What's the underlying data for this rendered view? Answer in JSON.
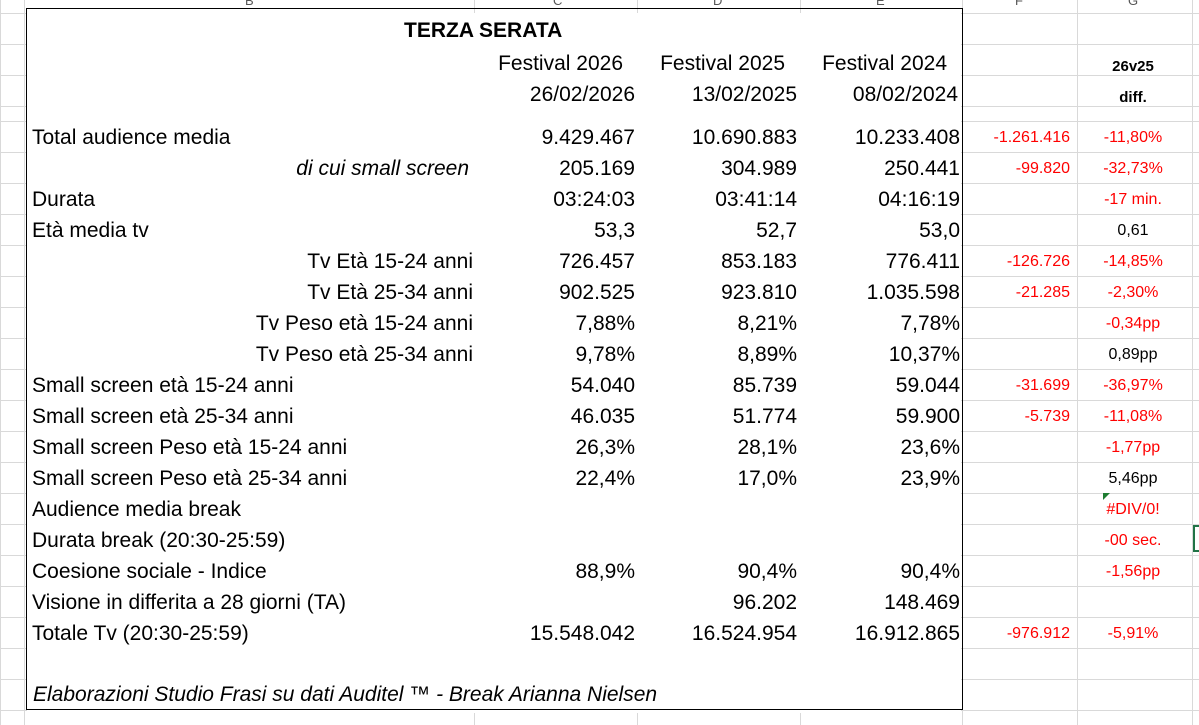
{
  "sheet": {
    "column_letters": [
      "B",
      "C",
      "D",
      "E",
      "F",
      "G"
    ],
    "title": "TERZA SERATA",
    "headers": {
      "festivals": [
        "Festival 2026",
        "Festival 2025",
        "Festival 2024"
      ],
      "dates": [
        "26/02/2026",
        "13/02/2025",
        "08/02/2024"
      ],
      "comparison": "26v25",
      "diff": "diff."
    },
    "rows": [
      {
        "label": "Total audience media",
        "v2026": "9.429.467",
        "v2025": "10.690.883",
        "v2024": "10.233.408",
        "diff": "-1.261.416",
        "pct": "-11,80%"
      },
      {
        "label": "di cui small screen",
        "v2026": "205.169",
        "v2025": "304.989",
        "v2024": "250.441",
        "diff": "-99.820",
        "pct": "-32,73%"
      },
      {
        "label": "Durata",
        "v2026": "03:24:03",
        "v2025": "03:41:14",
        "v2024": "04:16:19",
        "diff": "",
        "pct": "-17 min."
      },
      {
        "label": "Età media tv",
        "v2026": "53,3",
        "v2025": "52,7",
        "v2024": "53,0",
        "diff": "",
        "pct": "0,61"
      },
      {
        "label": "Tv Età 15-24 anni",
        "v2026": "726.457",
        "v2025": "853.183",
        "v2024": "776.411",
        "diff": "-126.726",
        "pct": "-14,85%"
      },
      {
        "label": "Tv Età 25-34 anni",
        "v2026": "902.525",
        "v2025": "923.810",
        "v2024": "1.035.598",
        "diff": "-21.285",
        "pct": "-2,30%"
      },
      {
        "label": "Tv Peso età 15-24 anni",
        "v2026": "7,88%",
        "v2025": "8,21%",
        "v2024": "7,78%",
        "diff": "",
        "pct": "-0,34pp"
      },
      {
        "label": "Tv Peso età 25-34 anni",
        "v2026": "9,78%",
        "v2025": "8,89%",
        "v2024": "10,37%",
        "diff": "",
        "pct": "0,89pp"
      },
      {
        "label": "Small screen  età 15-24 anni",
        "v2026": "54.040",
        "v2025": "85.739",
        "v2024": "59.044",
        "diff": "-31.699",
        "pct": "-36,97%"
      },
      {
        "label": "Small screen  età 25-34 anni",
        "v2026": "46.035",
        "v2025": "51.774",
        "v2024": "59.900",
        "diff": "-5.739",
        "pct": "-11,08%"
      },
      {
        "label": "Small screen Peso età 15-24 anni",
        "v2026": "26,3%",
        "v2025": "28,1%",
        "v2024": "23,6%",
        "diff": "",
        "pct": "-1,77pp"
      },
      {
        "label": "Small screen Peso età 25-34 anni",
        "v2026": "22,4%",
        "v2025": "17,0%",
        "v2024": "23,9%",
        "diff": "",
        "pct": "5,46pp"
      },
      {
        "label": "Audience media break",
        "v2026": "",
        "v2025": "",
        "v2024": "",
        "diff": "",
        "pct": "#DIV/0!"
      },
      {
        "label": "Durata break (20:30-25:59)",
        "v2026": "",
        "v2025": "",
        "v2024": "",
        "diff": "",
        "pct": "-00 sec."
      },
      {
        "label": "Coesione sociale - Indice",
        "v2026": "88,9%",
        "v2025": "90,4%",
        "v2024": "90,4%",
        "diff": "",
        "pct": "-1,56pp"
      },
      {
        "label": "Visione in differita a 28 giorni (TA)",
        "v2026": "",
        "v2025": "96.202",
        "v2024": "148.469",
        "diff": "",
        "pct": ""
      },
      {
        "label": "Totale Tv (20:30-25:59)",
        "v2026": "15.548.042",
        "v2025": "16.524.954",
        "v2024": "16.912.865",
        "diff": "-976.912",
        "pct": "-5,91%"
      }
    ],
    "footer": "Elaborazioni Studio Frasi su dati Auditel ™ - Break Arianna Nielsen",
    "colors": {
      "negative": "#ff0000",
      "border": "#000000",
      "grid": "#d9d9d9",
      "selection": "#217346"
    }
  }
}
